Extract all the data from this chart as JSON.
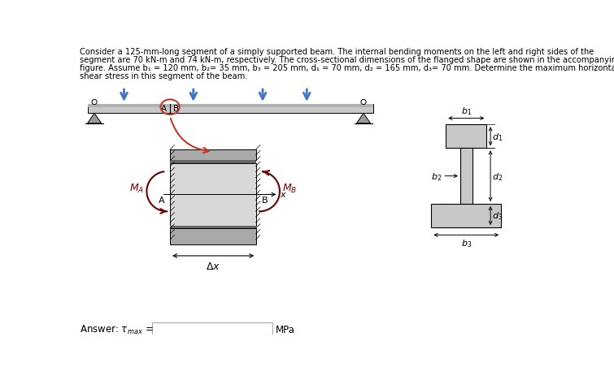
{
  "background_color": "#ffffff",
  "beam_color": "#c8c8c8",
  "beam_top_color": "#b0b0b0",
  "seg_top_color": "#aaaaaa",
  "seg_mid_color": "#d8d8d8",
  "seg_bot_color": "#aaaaaa",
  "seg_strip_color": "#888888",
  "cross_section_color": "#c8c8c8",
  "arrow_blue": "#4472c4",
  "arrow_red": "#c0392b",
  "moment_color": "#6b0000",
  "text_color": "#000000",
  "title_lines": [
    "Consider a 125-mm-long segment of a simply supported beam. The internal bending moments on the left and right sides of the",
    "segment are 70 kN-m and 74 kN-m, respectively. The cross-sectional dimensions of the flanged shape are shown in the accompanying",
    "figure. Assume b₁ = 120 mm, b₂= 35 mm, b₃ = 205 mm, d₁ = 70 mm, d₂ = 165 mm, d₃= 70 mm. Determine the maximum horizontal",
    "shear stress in this segment of the beam."
  ]
}
